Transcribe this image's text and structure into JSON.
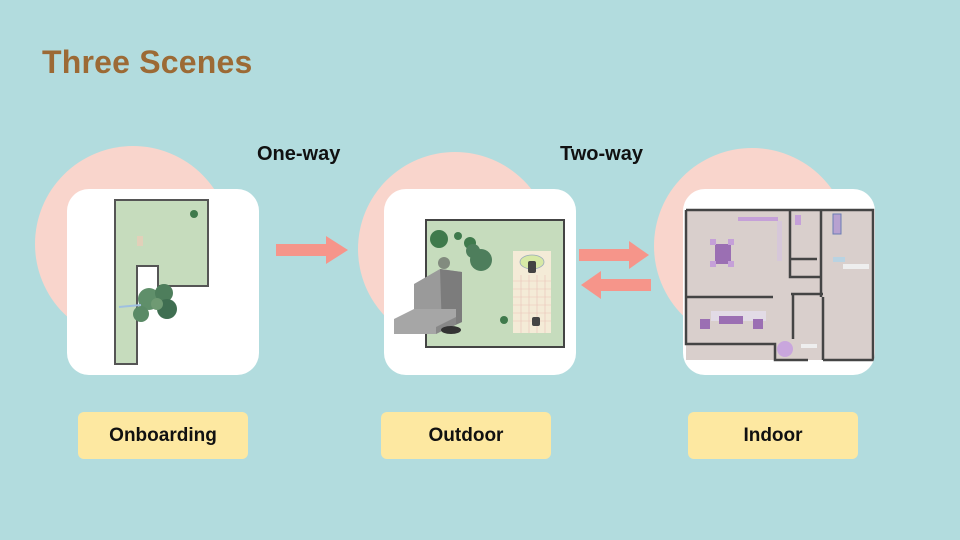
{
  "slide": {
    "title": "Three Scenes"
  },
  "connections": [
    {
      "label": "One-way"
    },
    {
      "label": "Two-way"
    }
  ],
  "scenes": [
    {
      "label": "Onboarding"
    },
    {
      "label": "Outdoor"
    },
    {
      "label": "Indoor"
    }
  ],
  "colors": {
    "background": "#b2dcde",
    "title": "#9c6a35",
    "blob": "#f9d5cc",
    "arrow": "#f6958a",
    "pill": "#fde8a1",
    "lawn": "#c6dcbd",
    "floor": "#d9cfcc"
  }
}
